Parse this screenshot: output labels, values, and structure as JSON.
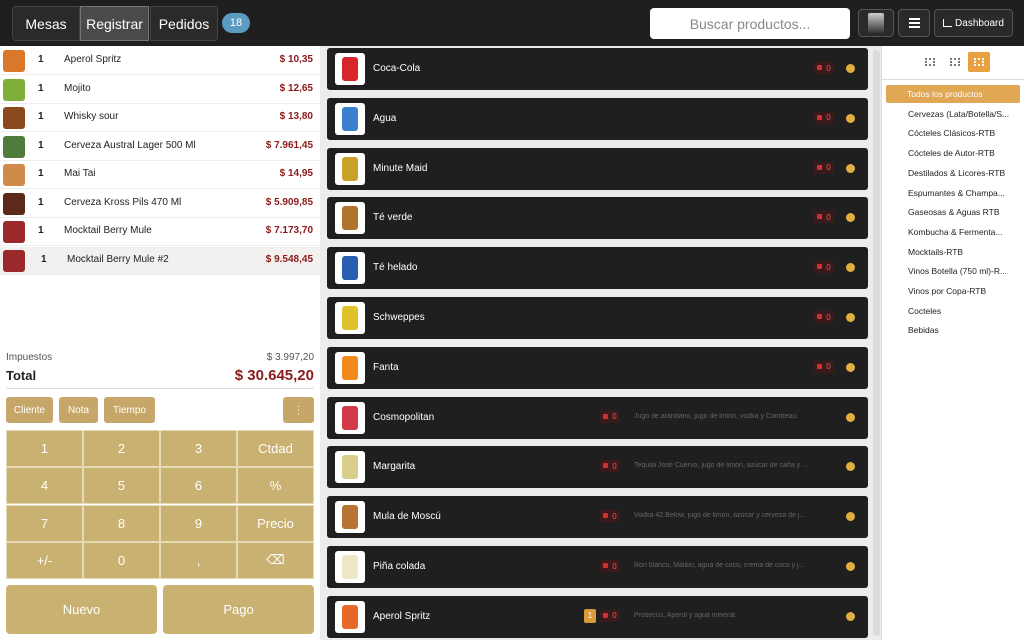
{
  "header": {
    "tabs": [
      "Mesas",
      "Registrar",
      "Pedidos"
    ],
    "active_tab": 1,
    "badge": "18",
    "search_placeholder": "Buscar productos...",
    "dashboard": "Dashboard"
  },
  "order": {
    "lines": [
      {
        "qty": "1",
        "name": "Aperol Spritz",
        "price": "$ 10,35",
        "color": "#d9772b"
      },
      {
        "qty": "1",
        "name": "Mojito",
        "price": "$ 12,65",
        "color": "#7fae3a"
      },
      {
        "qty": "1",
        "name": "Whisky sour",
        "price": "$ 13,80",
        "color": "#8a4a1e"
      },
      {
        "qty": "1",
        "name": "Cerveza Austral Lager 500 Ml",
        "price": "$ 7.961,45",
        "color": "#4f7c3a"
      },
      {
        "qty": "1",
        "name": "Mai Tai",
        "price": "$ 14,95",
        "color": "#d08a4a"
      },
      {
        "qty": "1",
        "name": "Cerveza Kross Pils 470 Ml",
        "price": "$ 5.909,85",
        "color": "#5b2a1a"
      },
      {
        "qty": "1",
        "name": "Mocktail Berry Mule",
        "price": "$ 7.173,70",
        "color": "#9a2a2a"
      },
      {
        "qty": "1",
        "name": "Mocktail Berry Mule #2",
        "price": "$ 9.548,45",
        "color": "#9a2a2a"
      }
    ],
    "taxes_label": "Impuestos",
    "taxes": "$ 3.997,20",
    "total_label": "Total",
    "total": "$ 30.645,20",
    "actions": [
      "Cliente",
      "Nota",
      "Tiempo",
      "⋮"
    ],
    "keypad": [
      "1",
      "2",
      "3",
      "Ctdad",
      "4",
      "5",
      "6",
      "%",
      "7",
      "8",
      "9",
      "Precio",
      "+/-",
      "0",
      ",",
      "⌫"
    ],
    "buttons": [
      "Nuevo",
      "Pago"
    ]
  },
  "products": [
    {
      "name": "Coca-Cola",
      "stock": "0",
      "color": "#d7262b"
    },
    {
      "name": "Agua",
      "stock": "0",
      "color": "#3a7fd0"
    },
    {
      "name": "Minute Maid",
      "stock": "0",
      "color": "#c9a227"
    },
    {
      "name": "Té verde",
      "stock": "0",
      "color": "#b0752a"
    },
    {
      "name": "Té helado",
      "stock": "0",
      "color": "#2a5fb0"
    },
    {
      "name": "Schweppes",
      "stock": "0",
      "color": "#e0c22a"
    },
    {
      "name": "Fanta",
      "stock": "0",
      "color": "#f08a1a"
    },
    {
      "name": "Cosmopolitan",
      "stock": "0",
      "color": "#d23a4a",
      "description": "Jugo de arándano, jugo de limón, vodka y Cointreau."
    },
    {
      "name": "Margarita",
      "stock": "0",
      "color": "#d8cf8a",
      "description": "Tequila José Cuervo, jugo de limón, azúcar de caña y ..."
    },
    {
      "name": "Mula de Moscú",
      "stock": "0",
      "color": "#b87333",
      "description": "Vodka 42 Below, jugo de limón, azúcar y cerveza de j..."
    },
    {
      "name": "Piña colada",
      "stock": "0",
      "color": "#efe6c8",
      "description": "Ron blanco, Malibú, agua de coco, crema de coco y j..."
    },
    {
      "name": "Aperol Spritz",
      "stock": "0",
      "count": "1",
      "color": "#e8682a",
      "description": "Prosecco, Aperol y agua mineral."
    }
  ],
  "categories": {
    "active": 0,
    "items": [
      "Todos los productos",
      "Cervezas (Lata/Botella/S...",
      "Cócteles Clásicos-RTB",
      "Cócteles de Autor-RTB",
      "Destilados & Licores-RTB",
      "Espumantes & Champa...",
      "Gaseosas & Aguas RTB",
      "Kombucha & Fermenta...",
      "Mocktails-RTB",
      "Vinos Botella (750 ml)-R...",
      "Vinos por Copa-RTB",
      "Cocteles",
      "Bebidas"
    ]
  }
}
